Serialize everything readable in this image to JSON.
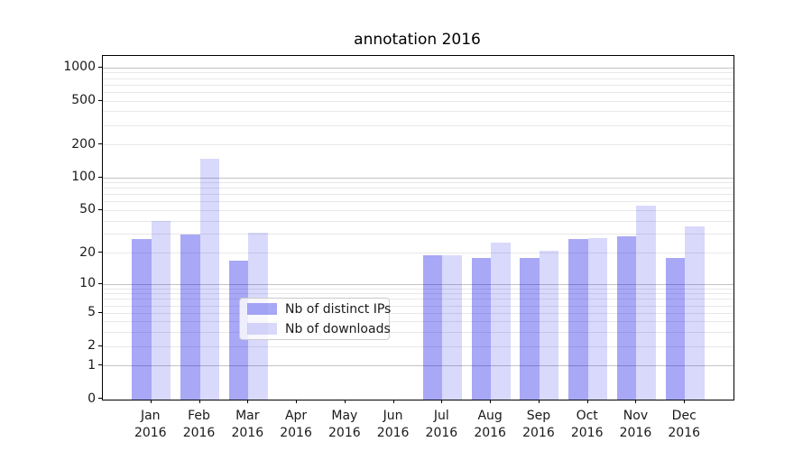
{
  "title": "annotation 2016",
  "chart_data": {
    "type": "bar",
    "title": "annotation 2016",
    "yscale": "log1p",
    "grid": true,
    "legend_position": "inside lower center",
    "year": "2016",
    "categories": [
      "Jan",
      "Feb",
      "Mar",
      "Apr",
      "May",
      "Jun",
      "Jul",
      "Aug",
      "Sep",
      "Oct",
      "Nov",
      "Dec"
    ],
    "series": [
      {
        "name": "Nb of distinct IPs",
        "color": "rgba(0,0,230,0.34)",
        "values": [
          27,
          30,
          17,
          0,
          0,
          0,
          19,
          18,
          18,
          27,
          29,
          18
        ]
      },
      {
        "name": "Nb of downloads",
        "color": "rgba(0,0,230,0.15)",
        "values": [
          40,
          150,
          31,
          0,
          0,
          0,
          19,
          25,
          21,
          28,
          56,
          36
        ]
      }
    ],
    "ytick_labels": [
      "0",
      "1",
      "2",
      "5",
      "10",
      "20",
      "50",
      "100",
      "200",
      "500",
      "1000"
    ],
    "ytick_values": [
      0,
      1,
      2,
      5,
      10,
      20,
      50,
      100,
      200,
      500,
      1000
    ],
    "major_gridlines": [
      1,
      10,
      100,
      1000
    ],
    "minor_gridlines": [
      2,
      3,
      4,
      5,
      6,
      7,
      8,
      9,
      20,
      30,
      40,
      50,
      60,
      70,
      80,
      90,
      200,
      300,
      400,
      500,
      600,
      700,
      800,
      900
    ],
    "ylim": [
      0,
      1285
    ]
  },
  "appearance": {
    "major_grid_color": "#c3c3c3",
    "minor_grid_color": "#e8e8e8",
    "spine_color": "#000000",
    "text_color": "#1a1a1a",
    "background": "#ffffff"
  }
}
